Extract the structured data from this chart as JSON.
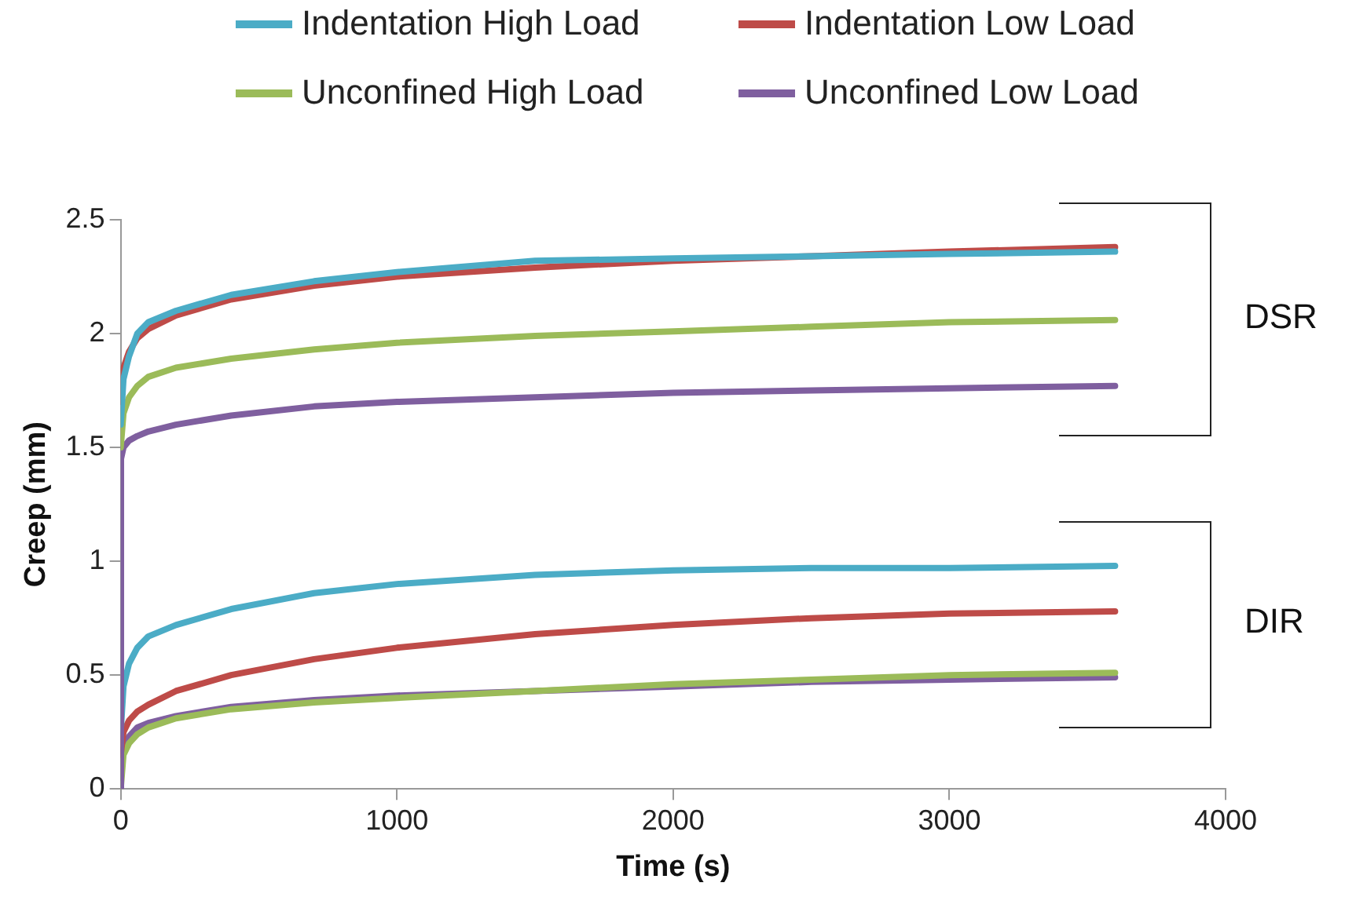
{
  "chart_data": {
    "type": "line",
    "xlabel": "Time (s)",
    "ylabel": "Creep (mm)",
    "x": [
      0,
      10,
      30,
      60,
      100,
      200,
      400,
      700,
      1000,
      1500,
      2000,
      2500,
      3000,
      3600
    ],
    "series": [
      {
        "name": "Indentation High Load",
        "color": "#4bacc6",
        "values": [
          1.6,
          1.8,
          1.9,
          2.0,
          2.05,
          2.1,
          2.17,
          2.23,
          2.27,
          2.32,
          2.33,
          2.34,
          2.35,
          2.36
        ]
      },
      {
        "name": "Indentation Low Load",
        "color": "#be4b48",
        "values": [
          1.7,
          1.85,
          1.92,
          1.98,
          2.02,
          2.08,
          2.15,
          2.21,
          2.25,
          2.29,
          2.32,
          2.34,
          2.36,
          2.38
        ]
      },
      {
        "name": "Unconfined High Load",
        "color": "#9bbb59",
        "values": [
          1.5,
          1.65,
          1.72,
          1.77,
          1.81,
          1.85,
          1.89,
          1.93,
          1.96,
          1.99,
          2.01,
          2.03,
          2.05,
          2.06
        ]
      },
      {
        "name": "Unconfined Low Load",
        "color": "#7f5f9f",
        "x": [
          0,
          1,
          10,
          30,
          60,
          100,
          200,
          400,
          700,
          1000,
          1500,
          2000,
          2500,
          3000,
          3600
        ],
        "values": [
          0,
          1.45,
          1.5,
          1.53,
          1.55,
          1.57,
          1.6,
          1.64,
          1.68,
          1.7,
          1.72,
          1.74,
          1.75,
          1.76,
          1.77
        ]
      },
      {
        "color": "#4bacc6",
        "values": [
          0.25,
          0.45,
          0.55,
          0.62,
          0.67,
          0.72,
          0.79,
          0.86,
          0.9,
          0.94,
          0.96,
          0.97,
          0.97,
          0.98
        ]
      },
      {
        "color": "#be4b48",
        "values": [
          0.15,
          0.25,
          0.3,
          0.34,
          0.37,
          0.43,
          0.5,
          0.57,
          0.62,
          0.68,
          0.72,
          0.75,
          0.77,
          0.78
        ]
      },
      {
        "color": "#9bbb59",
        "values": [
          0,
          0.15,
          0.2,
          0.24,
          0.27,
          0.31,
          0.35,
          0.38,
          0.4,
          0.43,
          0.46,
          0.48,
          0.5,
          0.51
        ]
      },
      {
        "color": "#7f5f9f",
        "values": [
          0.05,
          0.18,
          0.23,
          0.27,
          0.29,
          0.32,
          0.36,
          0.39,
          0.41,
          0.43,
          0.45,
          0.47,
          0.48,
          0.49
        ]
      }
    ],
    "xlim": [
      0,
      4000
    ],
    "xticks": [
      0,
      1000,
      2000,
      3000,
      4000
    ],
    "ylim": [
      0,
      2.5
    ],
    "yticks": [
      0,
      0.5,
      1,
      1.5,
      2,
      2.5
    ],
    "grid": false,
    "legend": "top",
    "marker": "none",
    "line_style": "solid",
    "annotations": [
      "DSR",
      "DIR"
    ]
  }
}
